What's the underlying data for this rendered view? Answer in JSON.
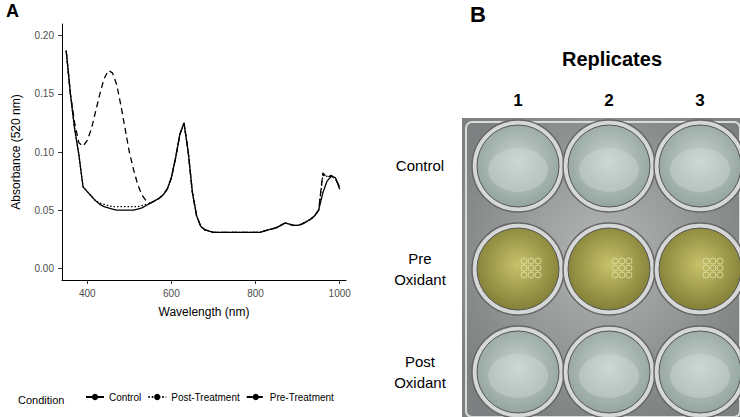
{
  "chart_data": {
    "type": "line",
    "panel": "A",
    "x_label": "Wavelength (nm)",
    "y_label": "Absorbance (520 nm)",
    "legend": "bottom",
    "legend_title": "Condition",
    "grid": false,
    "xlim": [
      340,
      1015
    ],
    "xticks": [
      400,
      600,
      800,
      1000
    ],
    "ylim": [
      -0.01,
      0.21
    ],
    "yticks": [
      {
        "value": 0,
        "label": "0.00"
      },
      0.05,
      {
        "value": 0.1,
        "label": "0.10"
      },
      0.15,
      {
        "value": 0.2,
        "label": "0.20"
      }
    ],
    "x": [
      350,
      360,
      370,
      380,
      390,
      400,
      410,
      420,
      430,
      440,
      450,
      460,
      470,
      480,
      490,
      500,
      510,
      520,
      530,
      540,
      550,
      560,
      570,
      580,
      590,
      600,
      610,
      620,
      630,
      640,
      650,
      660,
      670,
      680,
      690,
      700,
      710,
      720,
      730,
      740,
      750,
      760,
      770,
      780,
      790,
      800,
      810,
      820,
      830,
      840,
      850,
      860,
      870,
      880,
      890,
      900,
      910,
      920,
      930,
      940,
      950,
      960,
      970,
      980,
      990,
      1000
    ],
    "series": [
      {
        "name": "Control",
        "color": "#000000",
        "line_style": "solid",
        "values": [
          0.187,
          0.15,
          0.12,
          0.098,
          0.07,
          0.066,
          0.062,
          0.058,
          0.055,
          0.053,
          0.052,
          0.051,
          0.05,
          0.05,
          0.05,
          0.05,
          0.05,
          0.051,
          0.052,
          0.054,
          0.056,
          0.058,
          0.06,
          0.063,
          0.068,
          0.078,
          0.095,
          0.115,
          0.125,
          0.1,
          0.065,
          0.045,
          0.036,
          0.033,
          0.032,
          0.031,
          0.031,
          0.031,
          0.031,
          0.031,
          0.031,
          0.031,
          0.031,
          0.031,
          0.031,
          0.031,
          0.031,
          0.032,
          0.033,
          0.034,
          0.035,
          0.037,
          0.039,
          0.038,
          0.037,
          0.037,
          0.038,
          0.04,
          0.042,
          0.045,
          0.05,
          0.065,
          0.075,
          0.079,
          0.078,
          0.068
        ]
      },
      {
        "name": "Post-Treatment",
        "color": "#000000",
        "line_style": "dotted",
        "values": [
          0.187,
          0.15,
          0.12,
          0.098,
          0.07,
          0.066,
          0.062,
          0.058,
          0.056,
          0.055,
          0.054,
          0.053,
          0.053,
          0.053,
          0.053,
          0.053,
          0.053,
          0.053,
          0.054,
          0.055,
          0.056,
          0.058,
          0.06,
          0.063,
          0.068,
          0.078,
          0.095,
          0.115,
          0.125,
          0.1,
          0.065,
          0.045,
          0.036,
          0.033,
          0.032,
          0.031,
          0.031,
          0.031,
          0.031,
          0.031,
          0.031,
          0.031,
          0.031,
          0.031,
          0.031,
          0.031,
          0.031,
          0.032,
          0.033,
          0.034,
          0.035,
          0.037,
          0.039,
          0.038,
          0.037,
          0.037,
          0.038,
          0.04,
          0.042,
          0.045,
          0.05,
          0.08,
          0.079,
          0.079,
          0.077,
          0.07
        ]
      },
      {
        "name": "Pre-Treatment",
        "color": "#000000",
        "line_style": "dashed",
        "values": [
          0.187,
          0.15,
          0.125,
          0.108,
          0.105,
          0.11,
          0.12,
          0.135,
          0.15,
          0.163,
          0.17,
          0.168,
          0.158,
          0.14,
          0.12,
          0.1,
          0.085,
          0.072,
          0.063,
          0.058,
          0.056,
          0.058,
          0.06,
          0.063,
          0.068,
          0.078,
          0.095,
          0.115,
          0.125,
          0.1,
          0.065,
          0.045,
          0.036,
          0.033,
          0.032,
          0.031,
          0.031,
          0.031,
          0.031,
          0.031,
          0.031,
          0.031,
          0.031,
          0.031,
          0.031,
          0.031,
          0.031,
          0.032,
          0.033,
          0.034,
          0.035,
          0.037,
          0.039,
          0.038,
          0.037,
          0.037,
          0.038,
          0.04,
          0.042,
          0.045,
          0.05,
          0.082,
          0.078,
          0.08,
          0.077,
          0.07
        ]
      }
    ]
  },
  "photo": {
    "panel": "B",
    "column_title": "Replicates",
    "columns": [
      "1",
      "2",
      "3"
    ],
    "rows": [
      "Control",
      "Pre Oxidant",
      "Post Oxidant"
    ]
  }
}
